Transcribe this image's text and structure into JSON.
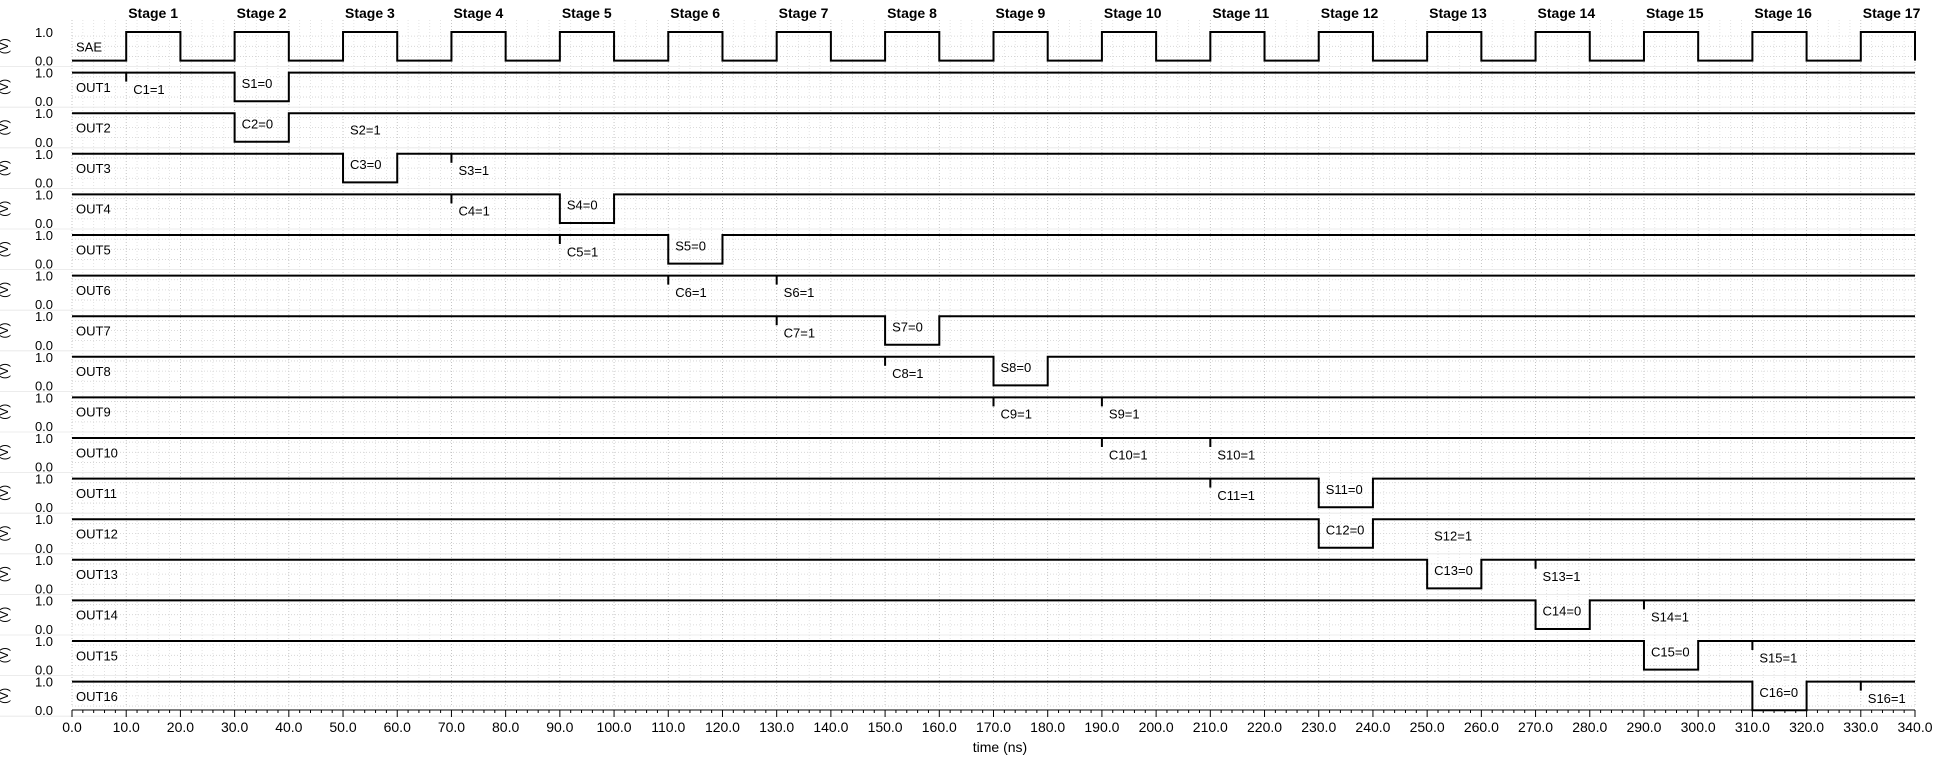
{
  "chart_data": {
    "type": "line",
    "xlabel": "time (ns)",
    "ylabel_unit": "(V)",
    "xlim": [
      0,
      340
    ],
    "x_ticks": [
      "0.0",
      "10.0",
      "20.0",
      "30.0",
      "40.0",
      "50.0",
      "60.0",
      "70.0",
      "80.0",
      "90.0",
      "100.0",
      "110.0",
      "120.0",
      "130.0",
      "140.0",
      "150.0",
      "160.0",
      "170.0",
      "180.0",
      "190.0",
      "200.0",
      "210.0",
      "220.0",
      "230.0",
      "240.0",
      "250.0",
      "260.0",
      "270.0",
      "280.0",
      "290.0",
      "300.0",
      "310.0",
      "320.0",
      "330.0",
      "340.0"
    ],
    "y_ticks": [
      "0.0",
      "1.0"
    ],
    "grid": true,
    "stages": [
      {
        "label": "Stage 1",
        "t": 10
      },
      {
        "label": "Stage 2",
        "t": 30
      },
      {
        "label": "Stage 3",
        "t": 50
      },
      {
        "label": "Stage 4",
        "t": 70
      },
      {
        "label": "Stage 5",
        "t": 90
      },
      {
        "label": "Stage 6",
        "t": 110
      },
      {
        "label": "Stage 7",
        "t": 130
      },
      {
        "label": "Stage 8",
        "t": 150
      },
      {
        "label": "Stage 9",
        "t": 170
      },
      {
        "label": "Stage 10",
        "t": 190
      },
      {
        "label": "Stage 11",
        "t": 210
      },
      {
        "label": "Stage 12",
        "t": 230
      },
      {
        "label": "Stage 13",
        "t": 250
      },
      {
        "label": "Stage 14",
        "t": 270
      },
      {
        "label": "Stage 15",
        "t": 290
      },
      {
        "label": "Stage 16",
        "t": 310
      },
      {
        "label": "Stage 17",
        "t": 330
      }
    ],
    "series": [
      {
        "name": "SAE",
        "kind": "clock",
        "high_from": 10,
        "period": 20,
        "duty": 10,
        "annotations": []
      },
      {
        "name": "OUT1",
        "low": [
          [
            30,
            40
          ]
        ],
        "glitches": [
          10
        ],
        "annotations": [
          {
            "t": 10,
            "text": "C1=1"
          },
          {
            "t": 30,
            "text": "S1=0"
          }
        ]
      },
      {
        "name": "OUT2",
        "low": [
          [
            30,
            40
          ]
        ],
        "glitches": [],
        "annotations": [
          {
            "t": 30,
            "text": "C2=0"
          },
          {
            "t": 50,
            "text": "S2=1"
          }
        ]
      },
      {
        "name": "OUT3",
        "low": [
          [
            50,
            60
          ]
        ],
        "glitches": [
          70
        ],
        "annotations": [
          {
            "t": 50,
            "text": "C3=0"
          },
          {
            "t": 70,
            "text": "S3=1"
          }
        ]
      },
      {
        "name": "OUT4",
        "low": [
          [
            90,
            100
          ]
        ],
        "glitches": [
          70
        ],
        "annotations": [
          {
            "t": 70,
            "text": "C4=1"
          },
          {
            "t": 90,
            "text": "S4=0"
          }
        ]
      },
      {
        "name": "OUT5",
        "low": [
          [
            110,
            120
          ]
        ],
        "glitches": [
          90
        ],
        "annotations": [
          {
            "t": 90,
            "text": "C5=1"
          },
          {
            "t": 110,
            "text": "S5=0"
          }
        ]
      },
      {
        "name": "OUT6",
        "low": [],
        "glitches": [
          110,
          130
        ],
        "annotations": [
          {
            "t": 110,
            "text": "C6=1"
          },
          {
            "t": 130,
            "text": "S6=1"
          }
        ]
      },
      {
        "name": "OUT7",
        "low": [
          [
            150,
            160
          ]
        ],
        "glitches": [
          130
        ],
        "annotations": [
          {
            "t": 130,
            "text": "C7=1"
          },
          {
            "t": 150,
            "text": "S7=0"
          }
        ]
      },
      {
        "name": "OUT8",
        "low": [
          [
            170,
            180
          ]
        ],
        "glitches": [
          150
        ],
        "annotations": [
          {
            "t": 150,
            "text": "C8=1"
          },
          {
            "t": 170,
            "text": "S8=0"
          }
        ]
      },
      {
        "name": "OUT9",
        "low": [],
        "glitches": [
          170,
          190
        ],
        "annotations": [
          {
            "t": 170,
            "text": "C9=1"
          },
          {
            "t": 190,
            "text": "S9=1"
          }
        ]
      },
      {
        "name": "OUT10",
        "low": [],
        "glitches": [
          190,
          210
        ],
        "annotations": [
          {
            "t": 190,
            "text": "C10=1"
          },
          {
            "t": 210,
            "text": "S10=1"
          }
        ]
      },
      {
        "name": "OUT11",
        "low": [
          [
            230,
            240
          ]
        ],
        "glitches": [
          210
        ],
        "annotations": [
          {
            "t": 210,
            "text": "C11=1"
          },
          {
            "t": 230,
            "text": "S11=0"
          }
        ]
      },
      {
        "name": "OUT12",
        "low": [
          [
            230,
            240
          ]
        ],
        "glitches": [],
        "annotations": [
          {
            "t": 230,
            "text": "C12=0"
          },
          {
            "t": 250,
            "text": "S12=1"
          }
        ]
      },
      {
        "name": "OUT13",
        "low": [
          [
            250,
            260
          ]
        ],
        "glitches": [
          270
        ],
        "annotations": [
          {
            "t": 250,
            "text": "C13=0"
          },
          {
            "t": 270,
            "text": "S13=1"
          }
        ]
      },
      {
        "name": "OUT14",
        "low": [
          [
            270,
            280
          ]
        ],
        "glitches": [
          290
        ],
        "annotations": [
          {
            "t": 270,
            "text": "C14=0"
          },
          {
            "t": 290,
            "text": "S14=1"
          }
        ]
      },
      {
        "name": "OUT15",
        "low": [
          [
            290,
            300
          ]
        ],
        "glitches": [
          310
        ],
        "annotations": [
          {
            "t": 290,
            "text": "C15=0"
          },
          {
            "t": 310,
            "text": "S15=1"
          }
        ]
      },
      {
        "name": "OUT16",
        "low": [
          [
            310,
            320
          ]
        ],
        "glitches": [
          330
        ],
        "annotations": [
          {
            "t": 310,
            "text": "C16=0"
          },
          {
            "t": 330,
            "text": "S16=1"
          }
        ]
      }
    ]
  }
}
